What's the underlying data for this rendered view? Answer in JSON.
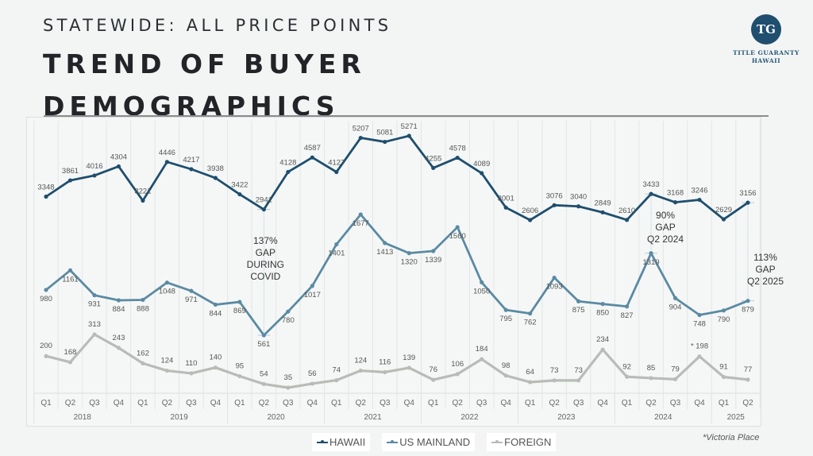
{
  "header": {
    "subtitle": "STATEWIDE: ALL PRICE POINTS",
    "title_line1": "TREND OF BUYER",
    "title_line2": "DEMOGRAPHICS"
  },
  "logo": {
    "monogram": "TG",
    "line1": "TITLE GUARANTY",
    "line2": "HAWAII",
    "color": "#1f4e6e"
  },
  "legend": [
    {
      "label": "HAWAII",
      "color": "#1f4e6e"
    },
    {
      "label": "US MAINLAND",
      "color": "#5b8aa3"
    },
    {
      "label": "FOREIGN",
      "color": "#b8bcb8"
    }
  ],
  "footnote": "*Victoria Place",
  "annotations": [
    {
      "text": [
        "137%",
        "GAP",
        "DURING",
        "COVID"
      ],
      "category_index": 9
    },
    {
      "text": [
        "90%",
        "GAP",
        "Q2 2024"
      ],
      "category_index": 25
    },
    {
      "text": [
        "113%",
        "GAP",
        "Q2 2025"
      ],
      "category_index": 29
    }
  ],
  "chart_data": {
    "type": "line",
    "title": "TREND OF BUYER DEMOGRAPHICS",
    "subtitle": "STATEWIDE: ALL PRICE POINTS",
    "xlabel": "",
    "ylabel": "",
    "grid": "vertical",
    "legend_position": "bottom",
    "years": [
      {
        "label": "2018",
        "span": 4
      },
      {
        "label": "2019",
        "span": 4
      },
      {
        "label": "2020",
        "span": 4
      },
      {
        "label": "2021",
        "span": 4
      },
      {
        "label": "2022",
        "span": 4
      },
      {
        "label": "2023",
        "span": 4
      },
      {
        "label": "2024",
        "span": 4
      },
      {
        "label": "2025",
        "span": 2
      }
    ],
    "categories": [
      "Q1",
      "Q2",
      "Q3",
      "Q4",
      "Q1",
      "Q2",
      "Q3",
      "Q4",
      "Q1",
      "Q2",
      "Q3",
      "Q4",
      "Q1",
      "Q2",
      "Q3",
      "Q4",
      "Q1",
      "Q2",
      "Q3",
      "Q4",
      "Q1",
      "Q2",
      "Q3",
      "Q4",
      "Q1",
      "Q2",
      "Q3",
      "Q4",
      "Q1",
      "Q2"
    ],
    "series": [
      {
        "name": "HAWAII",
        "color": "#1f4e6e",
        "values": [
          3348,
          3861,
          4016,
          4304,
          3221,
          4446,
          4217,
          3938,
          3422,
          2941,
          4128,
          4587,
          4127,
          5207,
          5081,
          5271,
          4255,
          4578,
          4089,
          3001,
          2606,
          3076,
          3040,
          2849,
          2610,
          3433,
          3168,
          3246,
          2629,
          3156
        ]
      },
      {
        "name": "US MAINLAND",
        "color": "#5b8aa3",
        "values": [
          980,
          1161,
          931,
          884,
          888,
          1048,
          971,
          844,
          869,
          561,
          780,
          1017,
          1401,
          1677,
          1413,
          1320,
          1339,
          1560,
          1050,
          795,
          762,
          1093,
          875,
          850,
          827,
          1319,
          904,
          748,
          790,
          879
        ]
      },
      {
        "name": "FOREIGN",
        "color": "#b8bcb8",
        "values": [
          200,
          168,
          313,
          243,
          162,
          124,
          110,
          140,
          95,
          54,
          35,
          56,
          74,
          124,
          116,
          139,
          76,
          106,
          184,
          98,
          64,
          73,
          73,
          234,
          92,
          85,
          79,
          198,
          91,
          77
        ],
        "notes": {
          "27": "* 198 (Victoria Place)"
        }
      }
    ]
  }
}
